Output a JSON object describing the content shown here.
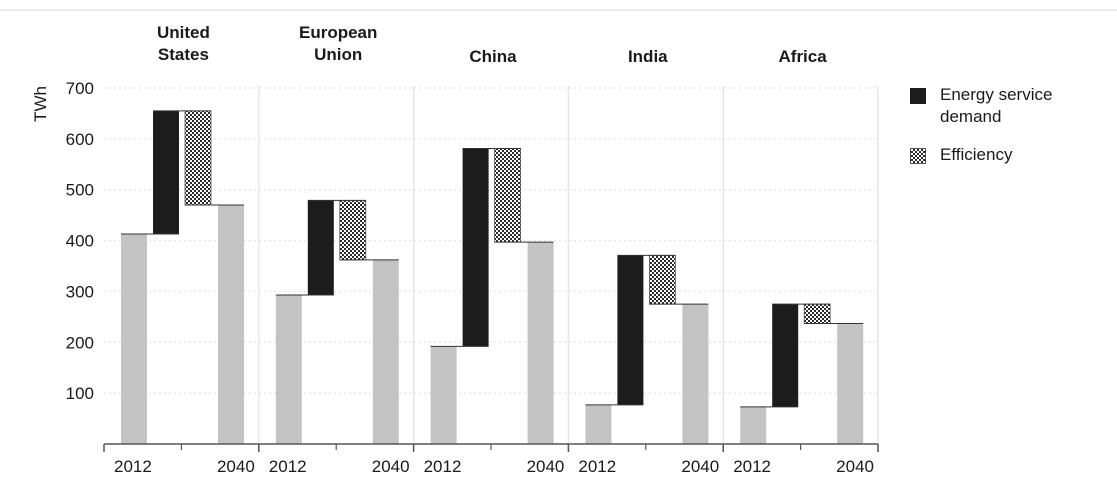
{
  "chart_data": {
    "type": "bar",
    "subtype": "waterfall-panels",
    "ylabel": "TWh",
    "ylim": [
      0,
      700
    ],
    "yticks": [
      100,
      200,
      300,
      400,
      500,
      600,
      700
    ],
    "grid": true,
    "grid_style": "dotted",
    "legend_position": "right",
    "colors": {
      "base_bar": "#c3c3c3",
      "energy_service_demand": "#1c1c1c",
      "efficiency_light": "#ffffff",
      "efficiency_dark": "#2a2a2a",
      "grid": "#e6e6e6",
      "axis": "#555555"
    },
    "legend": [
      {
        "key": "energy_service_demand",
        "label": "Energy service demand",
        "swatch": "solid"
      },
      {
        "key": "efficiency",
        "label": "Efficiency",
        "swatch": "hatch"
      }
    ],
    "x_tick_labels": [
      "2012",
      "2040"
    ],
    "panels": [
      {
        "region": "United States",
        "title_lines": [
          "United",
          "States"
        ],
        "y2012": 413,
        "energy_service_demand": 242,
        "efficiency": -185,
        "y2040": 470
      },
      {
        "region": "European Union",
        "title_lines": [
          "European",
          "Union"
        ],
        "y2012": 293,
        "energy_service_demand": 186,
        "efficiency": -117,
        "y2040": 362
      },
      {
        "region": "China",
        "title_lines": [
          "China"
        ],
        "y2012": 192,
        "energy_service_demand": 389,
        "efficiency": -184,
        "y2040": 397
      },
      {
        "region": "India",
        "title_lines": [
          "India"
        ],
        "y2012": 77,
        "energy_service_demand": 294,
        "efficiency": -96,
        "y2040": 275
      },
      {
        "region": "Africa",
        "title_lines": [
          "Africa"
        ],
        "y2012": 73,
        "energy_service_demand": 202,
        "efficiency": -38,
        "y2040": 237
      }
    ]
  }
}
